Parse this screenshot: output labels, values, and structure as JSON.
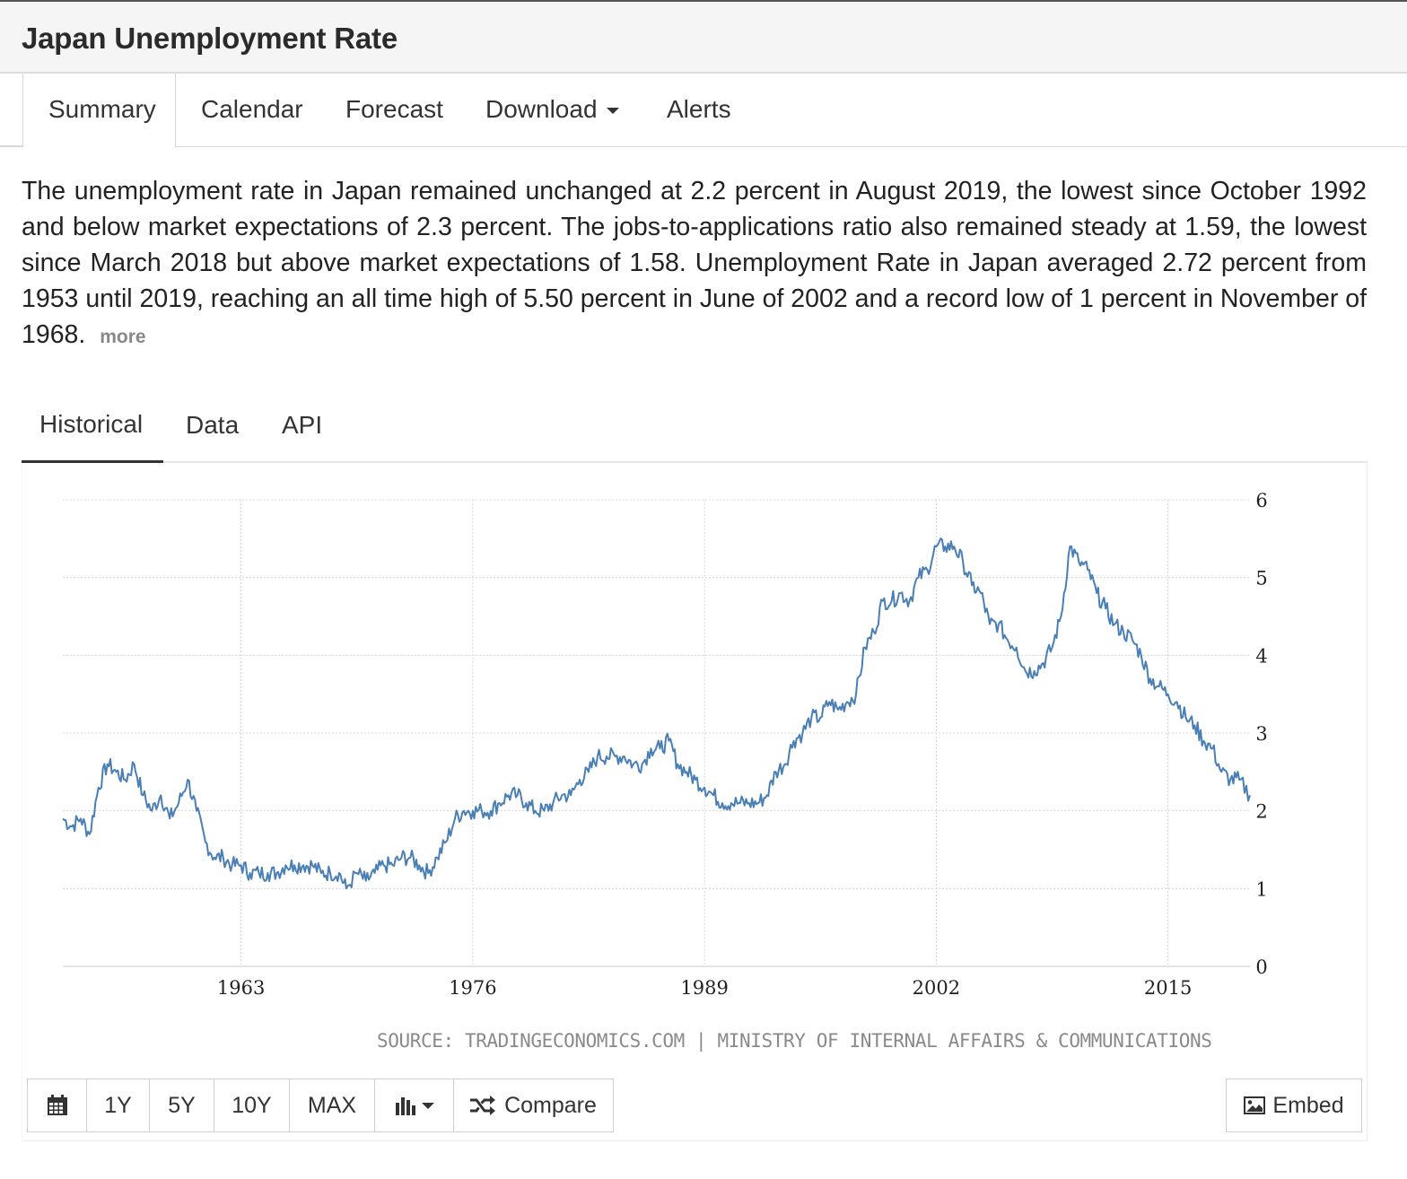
{
  "page": {
    "title": "Japan Unemployment Rate"
  },
  "main_tabs": [
    {
      "label": "Summary",
      "active": true
    },
    {
      "label": "Calendar"
    },
    {
      "label": "Forecast"
    },
    {
      "label": "Download",
      "dropdown": true
    },
    {
      "label": "Alerts"
    }
  ],
  "summary": {
    "text": "The unemployment rate in Japan remained unchanged at 2.2 percent in August 2019, the lowest since October 1992 and below market expectations of 2.3 percent. The jobs-to-applications ratio also remained steady at 1.59, the lowest since March 2018 but above market expectations of 1.58. Unemployment Rate in Japan averaged 2.72 percent from 1953 until 2019, reaching an all time high of 5.50 percent in June of 2002 and a record low of 1 percent in November of 1968.",
    "more_label": "more"
  },
  "sub_tabs": [
    {
      "label": "Historical",
      "active": true
    },
    {
      "label": "Data"
    },
    {
      "label": "API"
    }
  ],
  "chart_data": {
    "type": "line",
    "series": [
      {
        "color": "#4a7fb5",
        "x": [
          1953.0,
          1953.5,
          1954.0,
          1954.5,
          1955.0,
          1955.5,
          1956.0,
          1956.5,
          1957.0,
          1957.5,
          1958.0,
          1958.5,
          1959.0,
          1959.5,
          1960.0,
          1960.5,
          1961.0,
          1961.5,
          1962.0,
          1962.5,
          1963.0,
          1963.5,
          1964.0,
          1964.5,
          1965.0,
          1965.5,
          1966.0,
          1966.5,
          1967.0,
          1967.5,
          1968.0,
          1968.5,
          1968.9,
          1969.5,
          1970.0,
          1970.5,
          1971.0,
          1971.5,
          1972.0,
          1972.5,
          1973.0,
          1973.5,
          1974.0,
          1974.5,
          1975.0,
          1975.5,
          1976.0,
          1976.5,
          1977.0,
          1977.5,
          1978.0,
          1978.5,
          1979.0,
          1979.5,
          1980.0,
          1980.5,
          1981.0,
          1981.5,
          1982.0,
          1982.5,
          1983.0,
          1983.5,
          1984.0,
          1984.5,
          1985.0,
          1985.5,
          1986.0,
          1986.5,
          1987.0,
          1987.5,
          1988.0,
          1988.5,
          1989.0,
          1989.5,
          1990.0,
          1990.5,
          1991.0,
          1991.5,
          1992.0,
          1992.5,
          1993.0,
          1993.5,
          1994.0,
          1994.5,
          1995.0,
          1995.5,
          1996.0,
          1996.5,
          1997.0,
          1997.5,
          1998.0,
          1998.5,
          1999.0,
          1999.5,
          2000.0,
          2000.5,
          2001.0,
          2001.5,
          2002.0,
          2002.5,
          2003.0,
          2003.5,
          2004.0,
          2004.5,
          2005.0,
          2005.5,
          2006.0,
          2006.5,
          2007.0,
          2007.5,
          2008.0,
          2008.5,
          2009.0,
          2009.5,
          2010.0,
          2010.5,
          2011.0,
          2011.5,
          2012.0,
          2012.5,
          2013.0,
          2013.5,
          2014.0,
          2014.5,
          2015.0,
          2015.5,
          2016.0,
          2016.5,
          2017.0,
          2017.5,
          2018.0,
          2018.5,
          2019.0,
          2019.6
        ],
        "y": [
          1.9,
          1.8,
          1.9,
          1.7,
          2.3,
          2.6,
          2.5,
          2.4,
          2.6,
          2.2,
          2.0,
          2.2,
          1.9,
          2.1,
          2.4,
          2.0,
          1.6,
          1.4,
          1.4,
          1.3,
          1.3,
          1.2,
          1.2,
          1.2,
          1.2,
          1.3,
          1.3,
          1.3,
          1.3,
          1.2,
          1.2,
          1.2,
          1.0,
          1.2,
          1.1,
          1.2,
          1.3,
          1.3,
          1.4,
          1.4,
          1.3,
          1.2,
          1.4,
          1.6,
          1.9,
          2.0,
          2.0,
          2.0,
          2.0,
          2.1,
          2.2,
          2.2,
          2.1,
          2.0,
          2.0,
          2.1,
          2.2,
          2.2,
          2.4,
          2.5,
          2.7,
          2.7,
          2.7,
          2.7,
          2.6,
          2.6,
          2.8,
          2.8,
          2.9,
          2.6,
          2.5,
          2.4,
          2.3,
          2.2,
          2.1,
          2.1,
          2.1,
          2.1,
          2.1,
          2.2,
          2.5,
          2.6,
          2.9,
          3.0,
          3.2,
          3.2,
          3.4,
          3.3,
          3.4,
          3.5,
          4.1,
          4.3,
          4.7,
          4.7,
          4.8,
          4.7,
          5.0,
          5.1,
          5.4,
          5.4,
          5.4,
          5.2,
          4.9,
          4.8,
          4.4,
          4.4,
          4.2,
          4.1,
          3.8,
          3.8,
          3.9,
          4.1,
          4.5,
          5.4,
          5.2,
          5.1,
          4.8,
          4.6,
          4.4,
          4.3,
          4.2,
          4.0,
          3.7,
          3.6,
          3.5,
          3.4,
          3.2,
          3.1,
          2.9,
          2.8,
          2.5,
          2.4,
          2.4,
          2.2
        ]
      }
    ],
    "x_ticks": [
      "1963",
      "1976",
      "1989",
      "2002",
      "2015"
    ],
    "x_tick_values": [
      1963,
      1976,
      1989,
      2002,
      2015
    ],
    "y_ticks": [
      "0",
      "1",
      "2",
      "3",
      "4",
      "5",
      "6"
    ],
    "xlim": [
      1953,
      2019.6
    ],
    "ylim": [
      0,
      6
    ],
    "grid": true,
    "source": "SOURCE: TRADINGECONOMICS.COM | MINISTRY OF INTERNAL AFFAIRS & COMMUNICATIONS"
  },
  "toolbar": {
    "range_buttons": [
      "1Y",
      "5Y",
      "10Y",
      "MAX"
    ],
    "compare_label": "Compare",
    "embed_label": "Embed",
    "icons": [
      "calendar-icon",
      "bar-chart-icon",
      "shuffle-icon",
      "image-icon"
    ]
  }
}
